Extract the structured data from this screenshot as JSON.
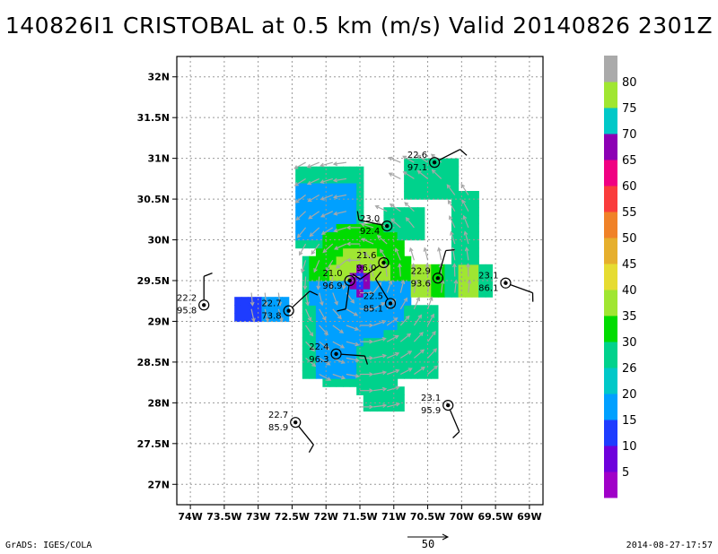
{
  "title": "140826I1 CRISTOBAL at 0.5 km (m/s) Valid 20140826 2301Z",
  "footer_left": "GrADS: IGES/COLA",
  "footer_right": "2014-08-27-17:57",
  "vector_reference_label": "50",
  "chart_data": {
    "type": "heatmap",
    "title": "140826I1 CRISTOBAL at 0.5 km (m/s) Valid 20140826 2301Z",
    "xlabel": "",
    "ylabel": "",
    "xlim": [
      -74.2,
      -68.8
    ],
    "ylim": [
      26.75,
      32.25
    ],
    "x_ticks": [
      {
        "value": -74.0,
        "label": "74W"
      },
      {
        "value": -73.5,
        "label": "73.5W"
      },
      {
        "value": -73.0,
        "label": "73W"
      },
      {
        "value": -72.5,
        "label": "72.5W"
      },
      {
        "value": -72.0,
        "label": "72W"
      },
      {
        "value": -71.5,
        "label": "71.5W"
      },
      {
        "value": -71.0,
        "label": "71W"
      },
      {
        "value": -70.5,
        "label": "70.5W"
      },
      {
        "value": -70.0,
        "label": "70W"
      },
      {
        "value": -69.5,
        "label": "69.5W"
      },
      {
        "value": -69.0,
        "label": "69W"
      }
    ],
    "y_ticks": [
      {
        "value": 27.0,
        "label": "27N"
      },
      {
        "value": 27.5,
        "label": "27.5N"
      },
      {
        "value": 28.0,
        "label": "28N"
      },
      {
        "value": 28.5,
        "label": "28.5N"
      },
      {
        "value": 29.0,
        "label": "29N"
      },
      {
        "value": 29.5,
        "label": "29.5N"
      },
      {
        "value": 30.0,
        "label": "30N"
      },
      {
        "value": 30.5,
        "label": "30.5N"
      },
      {
        "value": 31.0,
        "label": "31N"
      },
      {
        "value": 31.5,
        "label": "31.5N"
      },
      {
        "value": 32.0,
        "label": "32N"
      }
    ],
    "grid": true,
    "colorbar": {
      "labels": [
        "5",
        "10",
        "15",
        "20",
        "26",
        "30",
        "35",
        "40",
        "45",
        "50",
        "55",
        "60",
        "65",
        "70",
        "75",
        "80"
      ],
      "colors": [
        "#a000c8",
        "#6e00dc",
        "#1e3cff",
        "#00a0ff",
        "#00c8c8",
        "#00d28c",
        "#00dc00",
        "#a0e632",
        "#e6dc32",
        "#e6af2d",
        "#f08228",
        "#fa3c3c",
        "#f00082",
        "#8c00b4",
        "#00c8c8",
        "#a0e632",
        "#aaaaaa"
      ]
    },
    "stations": [
      {
        "lon": -73.8,
        "lat": 29.2,
        "temp": "22.2",
        "pressure": "95.8"
      },
      {
        "lon": -72.55,
        "lat": 29.13,
        "temp": "22.7",
        "pressure": "73.8"
      },
      {
        "lon": -71.85,
        "lat": 28.6,
        "temp": "22.4",
        "pressure": "96.3"
      },
      {
        "lon": -72.45,
        "lat": 27.76,
        "temp": "22.7",
        "pressure": "85.9"
      },
      {
        "lon": -71.65,
        "lat": 29.5,
        "temp": "21.0",
        "pressure": "96.9"
      },
      {
        "lon": -71.15,
        "lat": 29.72,
        "temp": "21.6",
        "pressure": "96.0"
      },
      {
        "lon": -71.1,
        "lat": 30.17,
        "temp": "23.0",
        "pressure": "92.4"
      },
      {
        "lon": -71.05,
        "lat": 29.22,
        "temp": "22.5",
        "pressure": "85.1"
      },
      {
        "lon": -70.35,
        "lat": 29.53,
        "temp": "22.9",
        "pressure": "93.6"
      },
      {
        "lon": -70.4,
        "lat": 30.95,
        "temp": "22.6",
        "pressure": "97.1"
      },
      {
        "lon": -69.35,
        "lat": 29.47,
        "temp": "23.1",
        "pressure": "86.1"
      },
      {
        "lon": -70.2,
        "lat": 27.97,
        "temp": "23.1",
        "pressure": "95.9"
      }
    ]
  }
}
